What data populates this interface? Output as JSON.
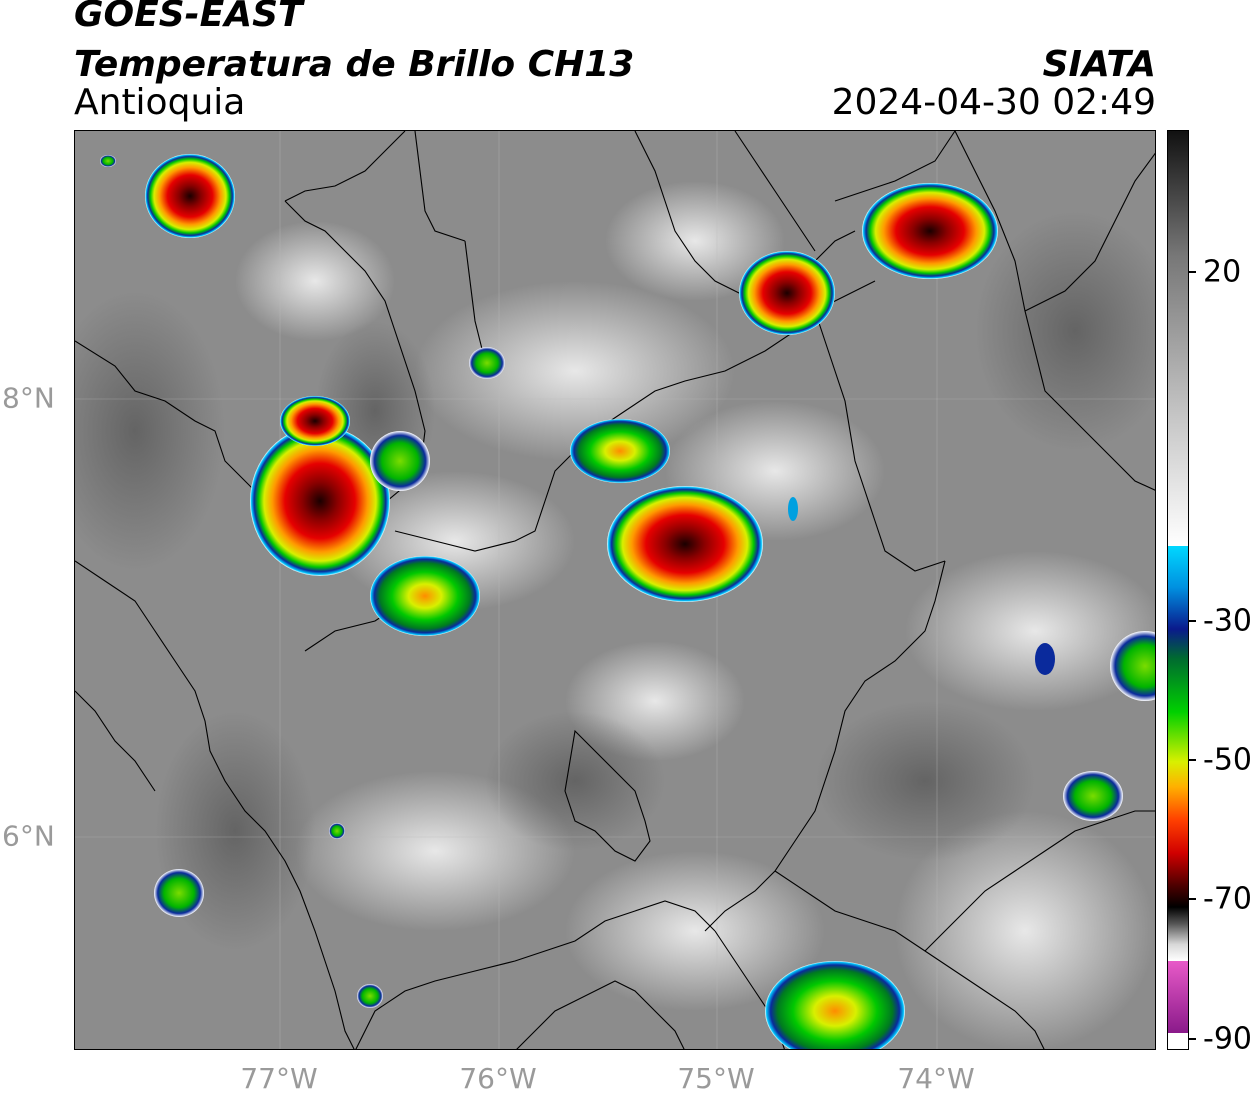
{
  "header": {
    "satellite": "GOES-EAST",
    "product": "Temperatura de Brillo CH13",
    "region": "Antioquia",
    "organization": "SIATA",
    "datetime": "2024-04-30 02:49"
  },
  "axes": {
    "longitude_labels": [
      "77°W",
      "76°W",
      "75°W",
      "74°W"
    ],
    "latitude_labels": [
      "8°N",
      "6°N"
    ]
  },
  "colorbar": {
    "units": "",
    "tick_labels": [
      "20",
      "-30",
      "-50",
      "-70",
      "-90"
    ],
    "palette": {
      "warm_gray_top": "#1a1a1a",
      "gray_mid": "#8a8a8a",
      "white": "#ffffff",
      "cyan": "#00c8ff",
      "blue": "#0a1a8c",
      "green": "#00c800",
      "yellow": "#e6f000",
      "orange": "#ff8c00",
      "red": "#e60000",
      "dark_red": "#5a0000",
      "black": "#000000",
      "magenta": "#e040c0",
      "purple": "#800080"
    }
  },
  "map": {
    "background": "grayscale infrared brightness temperature",
    "convective_cells": [
      "northwest cell near Urabá",
      "large cell near 77°W 7.7°N",
      "cell near 75.1°W 7.3°N",
      "cell near 74.7°W 8.5°N",
      "cell near 74°W 8.8°N",
      "cell near 74.5°W 5.0°N"
    ]
  }
}
